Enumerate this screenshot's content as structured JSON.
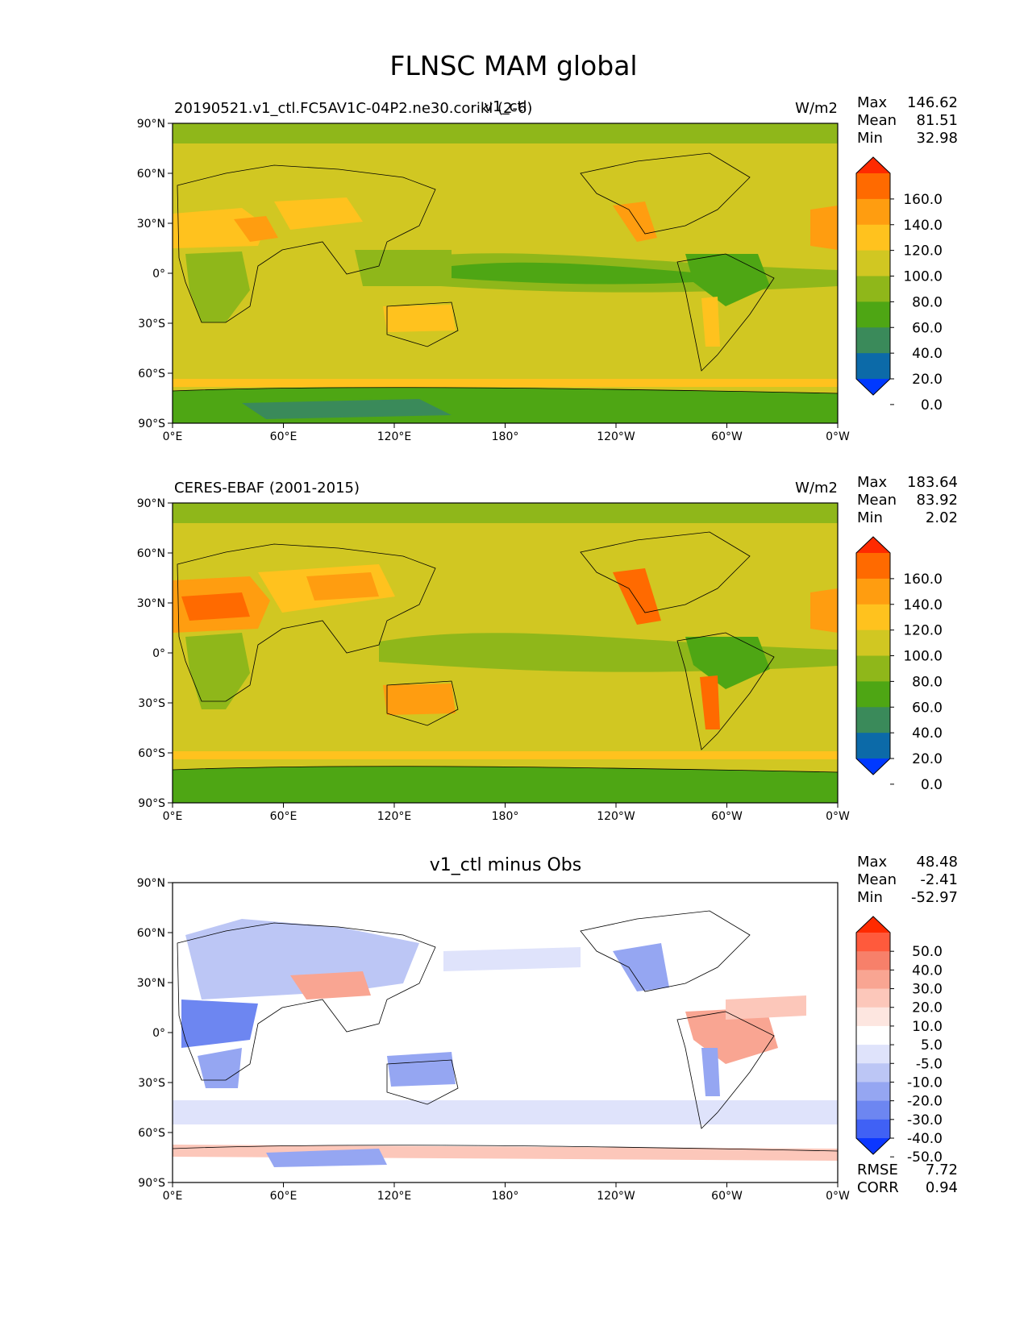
{
  "suptitle": "FLNSC MAM global",
  "panels": [
    {
      "id": "test",
      "left_title": "20190521.v1_ctl.FC5AV1C-04P2.ne30.corikl (2-6)",
      "center_title": "v1_ctl",
      "right_title": "W/m2",
      "stats": [
        {
          "label": "Max",
          "value": "146.62"
        },
        {
          "label": "Mean",
          "value": "81.51"
        },
        {
          "label": "Min",
          "value": "32.98"
        }
      ],
      "colorbar": {
        "labels": [
          "160.0",
          "140.0",
          "120.0",
          "100.0",
          "80.0",
          "60.0",
          "40.0",
          "20.0",
          "0.0"
        ],
        "colors": [
          "#ff2a00",
          "#ff6a00",
          "#ff9d10",
          "#ffc21e",
          "#d1c722",
          "#8fb71a",
          "#4ea614",
          "#3a8a5a",
          "#0c6aa8",
          "#0039ff"
        ]
      }
    },
    {
      "id": "ref",
      "left_title": "CERES-EBAF (2001-2015)",
      "center_title": "",
      "right_title": "W/m2",
      "stats": [
        {
          "label": "Max",
          "value": "183.64"
        },
        {
          "label": "Mean",
          "value": "83.92"
        },
        {
          "label": "Min",
          "value": "2.02"
        }
      ],
      "colorbar": {
        "labels": [
          "160.0",
          "140.0",
          "120.0",
          "100.0",
          "80.0",
          "60.0",
          "40.0",
          "20.0",
          "0.0"
        ],
        "colors": [
          "#ff2a00",
          "#ff6a00",
          "#ff9d10",
          "#ffc21e",
          "#d1c722",
          "#8fb71a",
          "#4ea614",
          "#3a8a5a",
          "#0c6aa8",
          "#0039ff"
        ]
      }
    },
    {
      "id": "diff",
      "left_title": "",
      "center_title": "v1_ctl minus Obs",
      "right_title": "",
      "stats": [
        {
          "label": "Max",
          "value": "48.48"
        },
        {
          "label": "Mean",
          "value": "-2.41"
        },
        {
          "label": "Min",
          "value": "-52.97"
        }
      ],
      "extra_stats": [
        {
          "label": "RMSE",
          "value": "7.72"
        },
        {
          "label": "CORR",
          "value": "0.94"
        }
      ],
      "colorbar": {
        "labels": [
          "50.0",
          "40.0",
          "30.0",
          "20.0",
          "10.0",
          "5.0",
          "-5.0",
          "-10.0",
          "-20.0",
          "-30.0",
          "-40.0",
          "-50.0"
        ],
        "colors": [
          "#ff2a00",
          "#ff5a3c",
          "#f7806a",
          "#f9a592",
          "#fcc7ba",
          "#fde6e0",
          "#ffffff",
          "#dfe3fb",
          "#bcc6f5",
          "#95a6f2",
          "#6d86f1",
          "#4061f5",
          "#0c37ff"
        ]
      }
    }
  ],
  "x_ticks": [
    "0°E",
    "60°E",
    "120°E",
    "180°",
    "120°W",
    "60°W",
    "0°W"
  ],
  "y_ticks": [
    "90°N",
    "60°N",
    "30°N",
    "0°",
    "30°S",
    "60°S",
    "90°S"
  ]
}
